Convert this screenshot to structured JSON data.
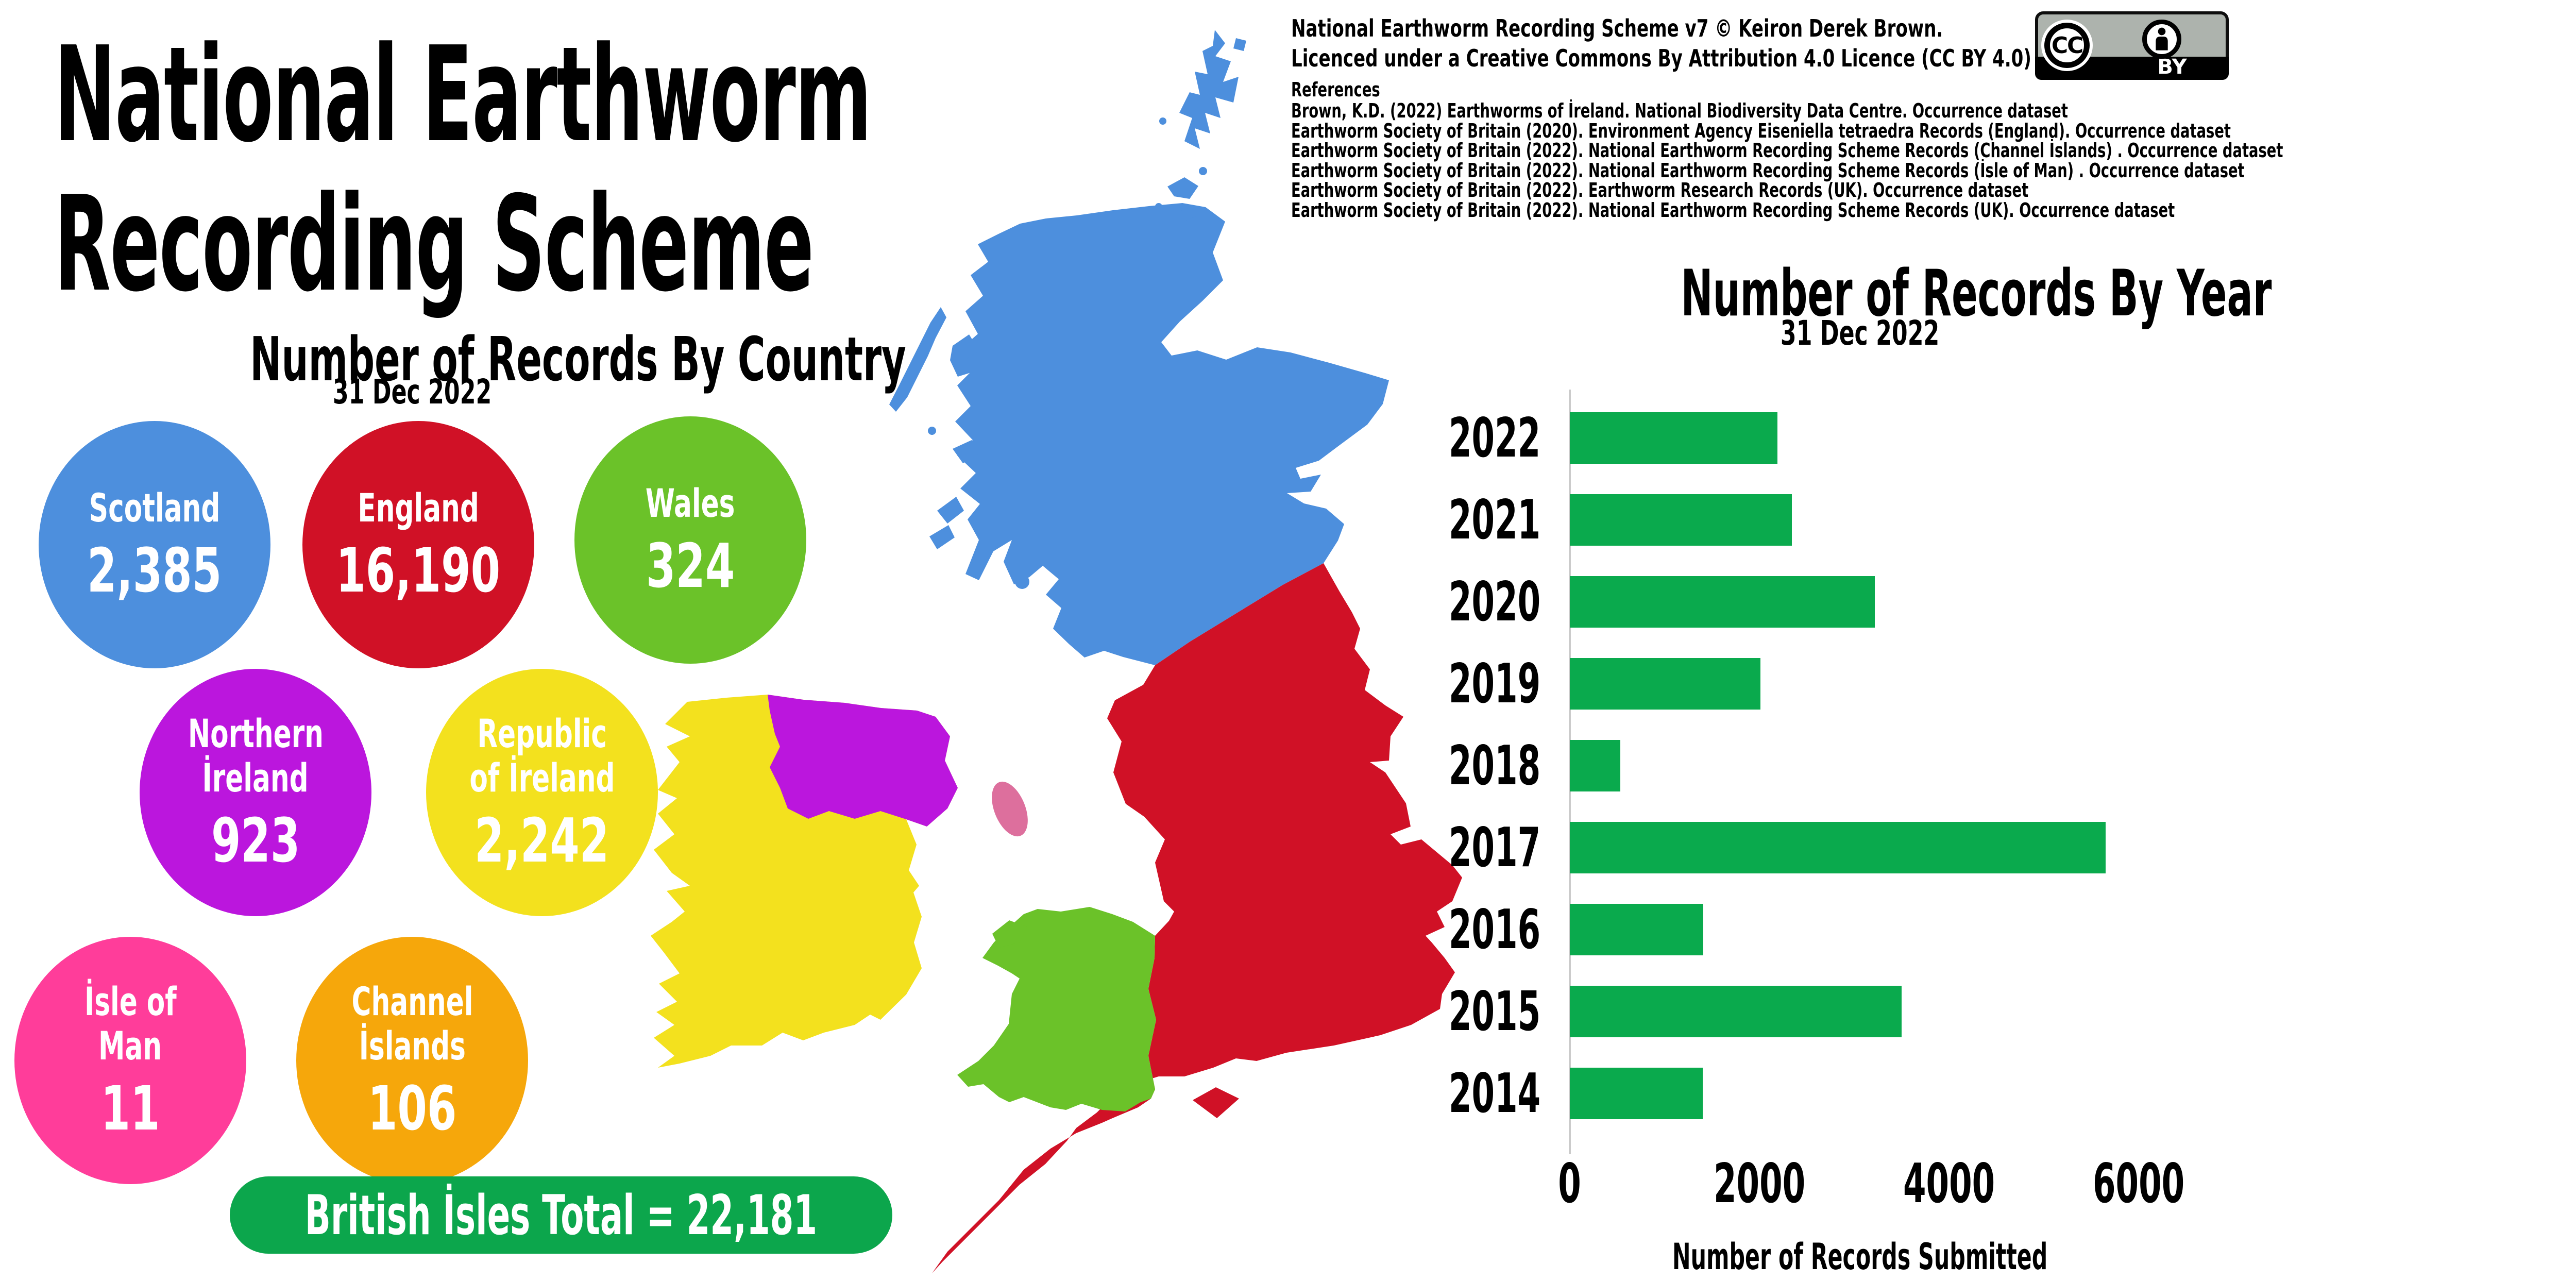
{
  "title": {
    "line1": "National Earthworm",
    "line2": "Recording Scheme"
  },
  "credits": {
    "line1": "National Earthworm Recording Scheme v7 © Keiron Derek Brown.",
    "line2": "Licenced under a Creative Commons By Attribution 4.0 Licence (CC BY 4.0)",
    "references_heading": "References",
    "references": [
      "Brown, K.D. (2022) Earthworms of İreland. National Biodiversity Data Centre. Occurrence dataset",
      "Earthworm Society of Britain (2020). Environment Agency Eiseniella tetraedra Records (England). Occurrence dataset",
      "Earthworm Society of Britain (2022). National Earthworm Recording Scheme Records (Channel İslands) . Occurrence dataset",
      "Earthworm Society of Britain (2022). National Earthworm Recording Scheme Records (İsle of Man) . Occurrence dataset",
      "Earthworm Society of Britain (2022). Earthworm Research Records (UK). Occurrence dataset",
      "Earthworm Society of Britain (2022). National Earthworm Recording Scheme Records (UK). Occurrence dataset"
    ]
  },
  "cc_badge": {
    "cc_label": "CC",
    "by_label": "BY"
  },
  "country_section": {
    "title": "Number of Records By Country",
    "subtitle": "31 Dec 2022",
    "countries": [
      {
        "name": "Scotland",
        "name_lines": [
          "Scotland"
        ],
        "value": "2,385",
        "color": "#4d8fdd"
      },
      {
        "name": "England",
        "name_lines": [
          "England"
        ],
        "value": "16,190",
        "color": "#d01126"
      },
      {
        "name": "Wales",
        "name_lines": [
          "Wales"
        ],
        "value": "324",
        "color": "#6bc229"
      },
      {
        "name": "Northern İreland",
        "name_lines": [
          "Northern",
          "İreland"
        ],
        "value": "923",
        "color": "#bb16dd"
      },
      {
        "name": "Republic of İreland",
        "name_lines": [
          "Republic",
          "of İreland"
        ],
        "value": "2,242",
        "color": "#f3e11e"
      },
      {
        "name": "İsle of Man",
        "name_lines": [
          "İsle of",
          "Man"
        ],
        "value": "11",
        "color": "#ff3d9a"
      },
      {
        "name": "Channel İslands",
        "name_lines": [
          "Channel",
          "İslands"
        ],
        "value": "106",
        "color": "#f6a70b"
      }
    ],
    "total_label": "British İsles Total = 22,181",
    "total_value": 22181,
    "total_color": "#0ca64c"
  },
  "chart_data": [
    {
      "type": "bar",
      "title": "Number of Records By Country",
      "subtitle": "31 Dec 2022",
      "categories": [
        "Scotland",
        "England",
        "Wales",
        "Northern İreland",
        "Republic of İreland",
        "İsle of Man",
        "Channel İslands"
      ],
      "values": [
        2385,
        16190,
        324,
        923,
        2242,
        11,
        106
      ],
      "colors": [
        "#4d8fdd",
        "#d01126",
        "#6bc229",
        "#bb16dd",
        "#f3e11e",
        "#ff3d9a",
        "#f6a70b"
      ],
      "total": 22181
    },
    {
      "type": "bar",
      "orientation": "horizontal",
      "title": "Number of Records By Year",
      "subtitle": "31 Dec 2022",
      "categories": [
        "2022",
        "2021",
        "2020",
        "2019",
        "2018",
        "2017",
        "2016",
        "2015",
        "2014"
      ],
      "values": [
        2190,
        2340,
        3220,
        2010,
        530,
        5650,
        1410,
        3500,
        1400
      ],
      "xlabel": "Number of Records Submitted",
      "xticks": [
        0,
        2000,
        4000,
        6000
      ],
      "xlim": [
        0,
        6000
      ],
      "bar_color": "#0aaa4d",
      "grid": false,
      "legend": false
    }
  ],
  "map": {
    "regions": [
      {
        "id": "scotland",
        "name": "Scotland",
        "color": "#4d8fdd"
      },
      {
        "id": "england",
        "name": "England",
        "color": "#d01126"
      },
      {
        "id": "wales",
        "name": "Wales",
        "color": "#6bc229"
      },
      {
        "id": "northern-ireland",
        "name": "Northern İreland",
        "color": "#bb16dd"
      },
      {
        "id": "republic-of-ireland",
        "name": "Republic of İreland",
        "color": "#f3e11e"
      },
      {
        "id": "isle-of-man",
        "name": "İsle of Man",
        "color": "#dd6f9d"
      }
    ]
  }
}
